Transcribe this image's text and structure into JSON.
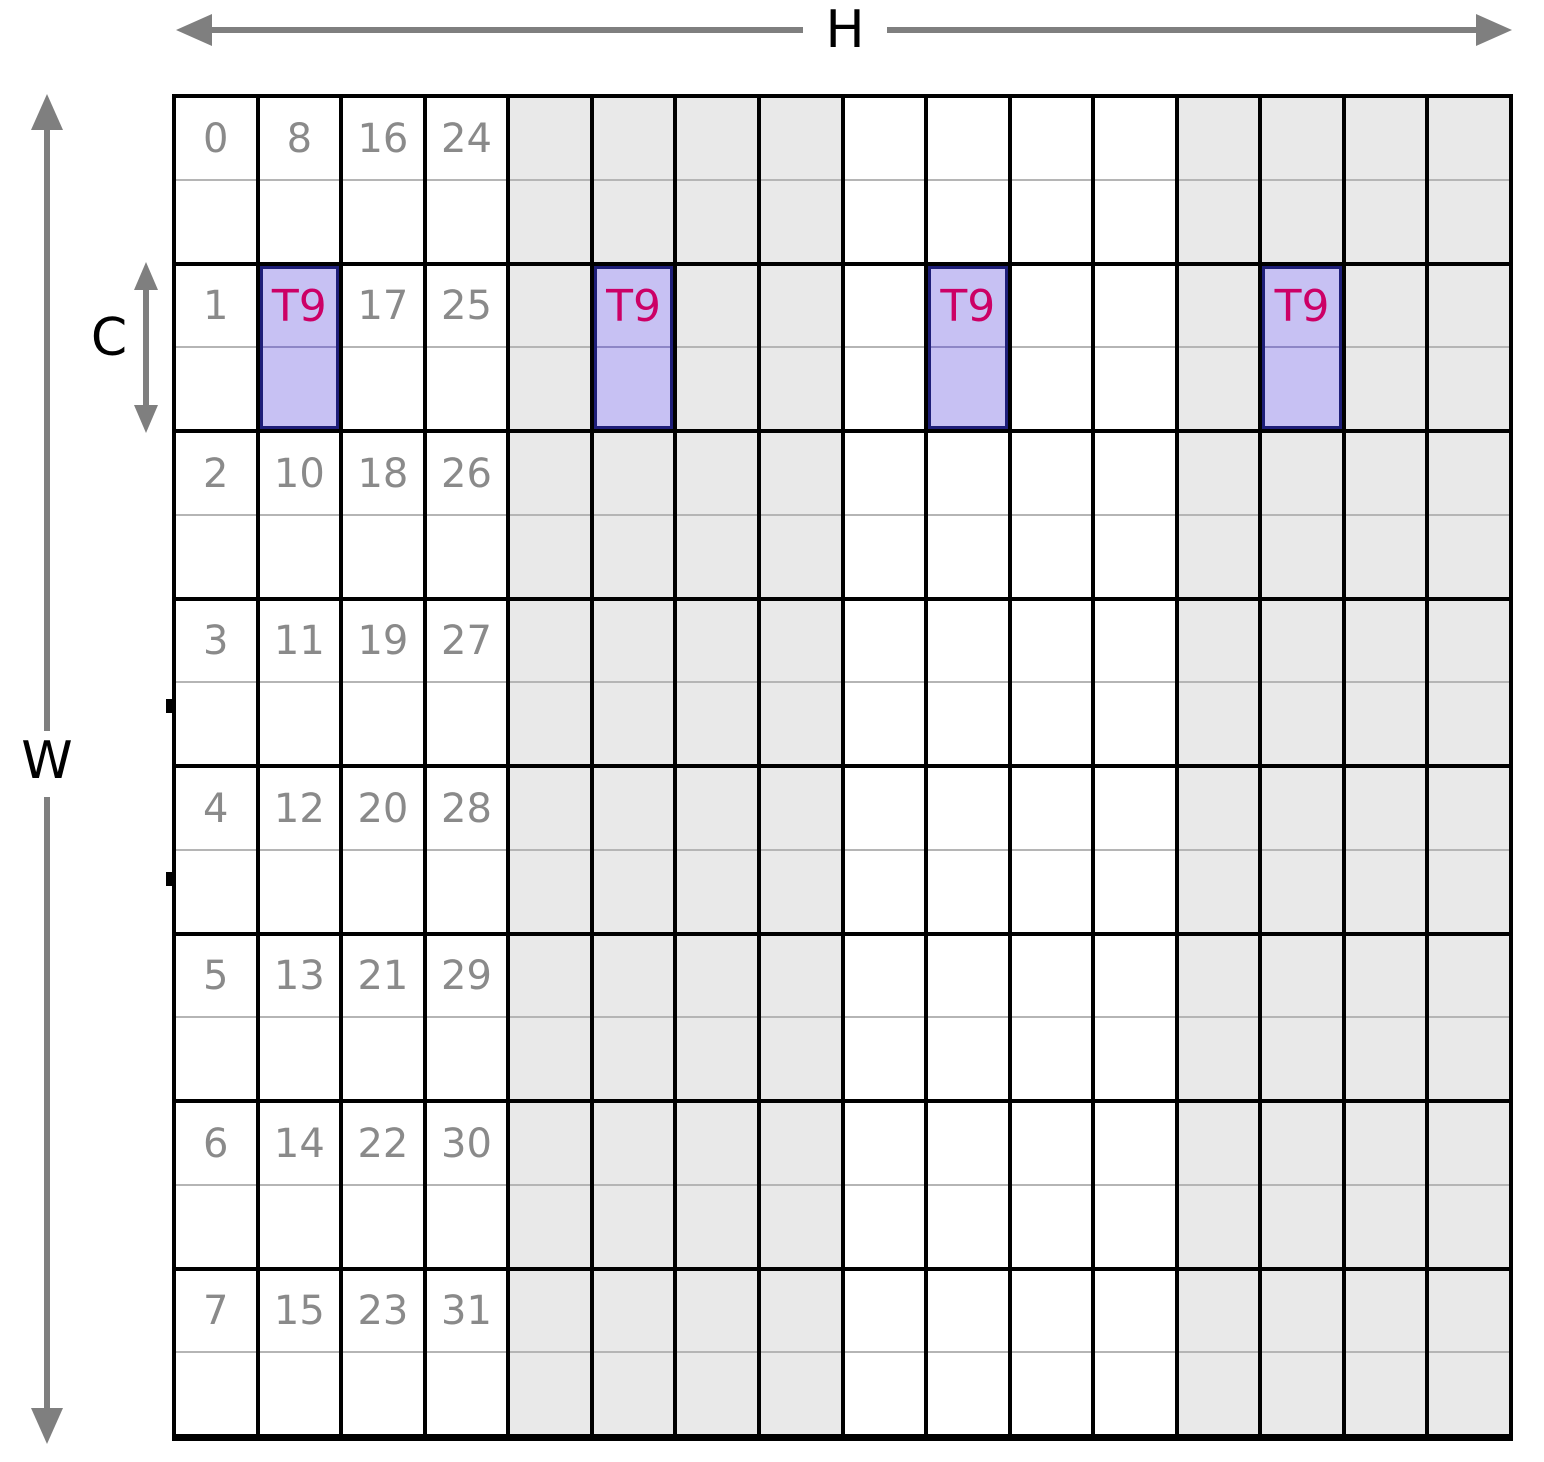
{
  "labels": {
    "h": "H",
    "w": "W",
    "c": "C"
  },
  "grid": {
    "columns": 16,
    "rows": 8,
    "sub_rows_per_row": 2,
    "numbered_columns": [
      0,
      1,
      2,
      3
    ],
    "cell_numbers": [
      [
        "0",
        "8",
        "16",
        "24"
      ],
      [
        "1",
        "",
        "17",
        "25"
      ],
      [
        "2",
        "10",
        "18",
        "26"
      ],
      [
        "3",
        "11",
        "19",
        "27"
      ],
      [
        "4",
        "12",
        "20",
        "28"
      ],
      [
        "5",
        "13",
        "21",
        "29"
      ],
      [
        "6",
        "14",
        "22",
        "30"
      ],
      [
        "7",
        "15",
        "23",
        "31"
      ]
    ],
    "gray_columns": [
      4,
      5,
      6,
      7,
      12,
      13,
      14,
      15
    ],
    "highlight": {
      "row": 1,
      "columns": [
        1,
        5,
        9,
        13
      ],
      "label": "T9"
    }
  },
  "colors": {
    "arrow": "#7f7f7f",
    "label-text": "#000000",
    "grid-line": "#000000",
    "white-cell": "#ffffff",
    "gray-cell": "#e9e9e9",
    "sub-divider": "#b5b5b5",
    "highlight-fill": "#c7c1f3",
    "highlight-border": "#1e1e78",
    "highlight-label": "#cc0066",
    "number-text": "#8a8a8a"
  }
}
